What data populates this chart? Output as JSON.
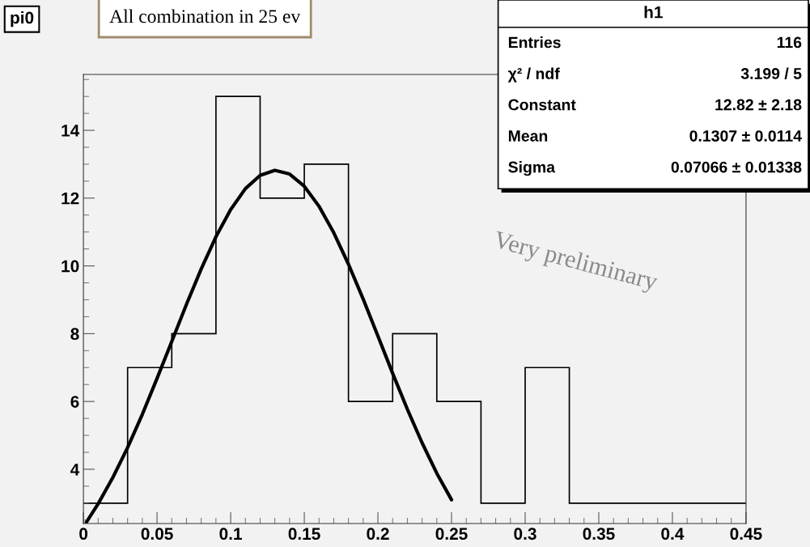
{
  "chart_data": {
    "type": "histogram",
    "title": "pi0",
    "bins": [
      0,
      0.03,
      0.06,
      0.09,
      0.12,
      0.15,
      0.18,
      0.21,
      0.24,
      0.27,
      0.3,
      0.33,
      0.36,
      0.39,
      0.42,
      0.45
    ],
    "values": [
      3,
      7,
      8,
      15,
      12,
      13,
      6,
      8,
      6,
      3,
      7,
      3,
      3,
      3,
      3
    ],
    "color": "#000000",
    "series": [
      {
        "type": "line",
        "color": "#000000",
        "x": [
          0.002,
          0.01,
          0.02,
          0.03,
          0.04,
          0.05,
          0.06,
          0.07,
          0.08,
          0.09,
          0.1,
          0.11,
          0.12,
          0.13,
          0.14,
          0.15,
          0.16,
          0.17,
          0.18,
          0.19,
          0.2,
          0.21,
          0.22,
          0.23,
          0.24,
          0.25
        ],
        "values": [
          2.44,
          2.98,
          3.76,
          4.64,
          5.62,
          6.68,
          7.77,
          8.87,
          9.91,
          10.86,
          11.66,
          12.28,
          12.67,
          12.82,
          12.71,
          12.35,
          11.76,
          10.98,
          10.05,
          9.02,
          7.93,
          6.83,
          5.77,
          4.78,
          3.88,
          3.1
        ]
      }
    ],
    "xlim": [
      0,
      0.45
    ],
    "xticks": [
      0,
      0.05,
      0.1,
      0.15,
      0.2,
      0.25,
      0.3,
      0.35,
      0.4,
      0.45
    ],
    "ylim": [
      2.4,
      15.65
    ],
    "yticks": [
      4,
      6,
      8,
      10,
      12,
      14
    ],
    "grid": false,
    "annotations": [
      "All combination in 25 ev",
      "Very preliminary",
      "h1",
      "Entries",
      "116",
      "χ² / ndf",
      "3.199 / 5",
      "Constant",
      "12.82 ± 2.18",
      "Mean",
      "0.1307 ± 0.0114",
      "Sigma",
      "0.07066 ± 0.01338"
    ]
  }
}
